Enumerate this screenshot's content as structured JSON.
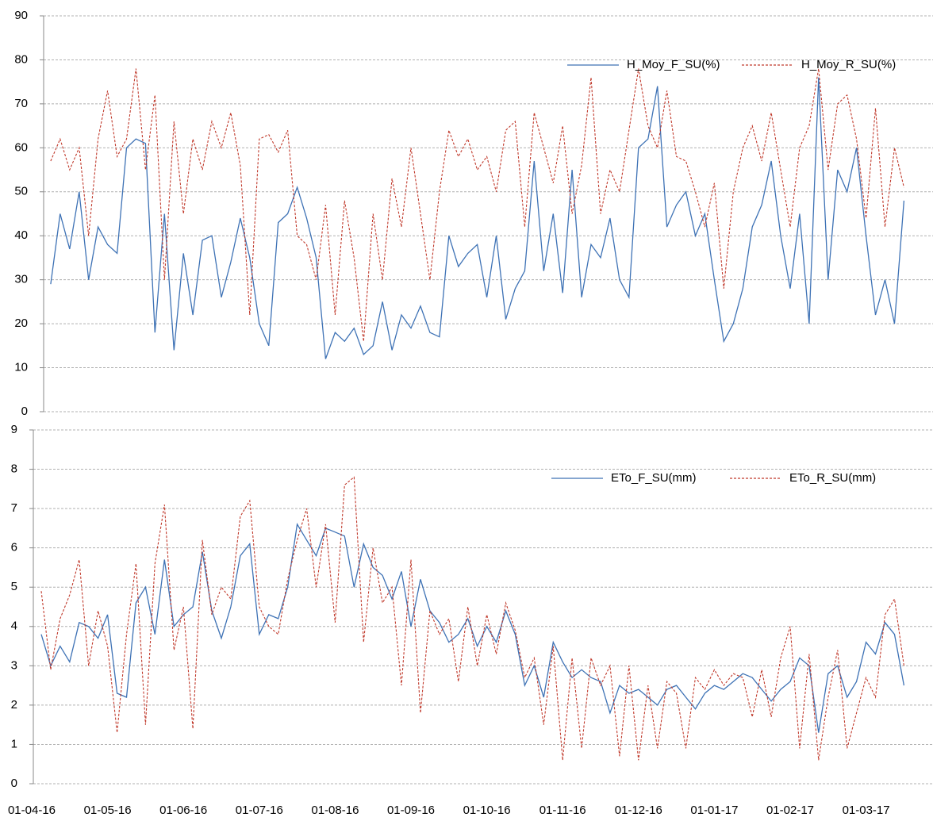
{
  "chart_data": [
    {
      "type": "line",
      "ylim": [
        0,
        90
      ],
      "yticks": [
        0,
        10,
        20,
        30,
        40,
        50,
        60,
        70,
        80,
        90
      ],
      "grid": true,
      "legend": "upper right",
      "series": [
        {
          "name": "H_Moy_F_SU(%)",
          "color": "#3e72b5",
          "dash": false,
          "values": [
            null,
            null,
            29,
            45,
            37,
            50,
            30,
            42,
            38,
            36,
            60,
            62,
            61,
            18,
            45,
            14,
            36,
            22,
            39,
            40,
            26,
            34,
            44,
            35,
            20,
            15,
            43,
            45,
            51,
            44,
            35,
            12,
            18,
            16,
            19,
            13,
            15,
            25,
            14,
            22,
            19,
            24,
            18,
            17,
            40,
            33,
            36,
            38,
            26,
            40,
            21,
            28,
            32,
            57,
            32,
            45,
            27,
            55,
            26,
            38,
            35,
            44,
            30,
            26,
            60,
            62,
            74,
            42,
            47,
            50,
            40,
            45,
            30,
            16,
            20,
            28,
            42,
            47,
            57,
            40,
            28,
            45,
            20,
            76,
            30,
            55,
            50,
            60,
            40,
            22,
            30,
            20,
            48,
            null,
            null,
            null
          ]
        },
        {
          "name": "H_Moy_R_SU(%)",
          "color": "#c0392b",
          "dash": true,
          "values": [
            null,
            null,
            57,
            62,
            55,
            60,
            40,
            62,
            73,
            58,
            62,
            78,
            55,
            72,
            30,
            66,
            45,
            62,
            55,
            66,
            60,
            68,
            56,
            22,
            62,
            63,
            59,
            64,
            40,
            38,
            30,
            47,
            22,
            48,
            35,
            16,
            45,
            30,
            53,
            42,
            60,
            45,
            30,
            50,
            64,
            58,
            62,
            55,
            58,
            50,
            64,
            66,
            42,
            68,
            60,
            52,
            65,
            45,
            56,
            76,
            45,
            55,
            50,
            64,
            78,
            65,
            60,
            73,
            58,
            57,
            50,
            42,
            52,
            28,
            50,
            60,
            65,
            57,
            68,
            55,
            42,
            60,
            65,
            78,
            55,
            70,
            72,
            62,
            44,
            69,
            42,
            60,
            51,
            null,
            null,
            null
          ]
        }
      ]
    },
    {
      "type": "line",
      "ylim": [
        0,
        9
      ],
      "yticks": [
        0,
        1,
        2,
        3,
        4,
        5,
        6,
        7,
        8,
        9
      ],
      "grid": true,
      "legend": "upper right",
      "categories": [
        "01-04-16",
        null,
        null,
        null,
        null,
        null,
        null,
        null,
        "01-05-16",
        null,
        null,
        null,
        null,
        null,
        null,
        null,
        "01-06-16",
        null,
        null,
        null,
        null,
        null,
        null,
        null,
        "01-07-16",
        null,
        null,
        null,
        null,
        null,
        null,
        null,
        "01-08-16",
        null,
        null,
        null,
        null,
        null,
        null,
        null,
        "01-09-16",
        null,
        null,
        null,
        null,
        null,
        null,
        null,
        "01-10-16",
        null,
        null,
        null,
        null,
        null,
        null,
        null,
        "01-11-16",
        null,
        null,
        null,
        null,
        null,
        null,
        null,
        "01-12-16",
        null,
        null,
        null,
        null,
        null,
        null,
        null,
        "01-01-17",
        null,
        null,
        null,
        null,
        null,
        null,
        null,
        "01-02-17",
        null,
        null,
        null,
        null,
        null,
        null,
        null,
        "01-03-17",
        null,
        null,
        null,
        null,
        null,
        null,
        null
      ],
      "series": [
        {
          "name": "ETo_F_SU(mm)",
          "color": "#3e72b5",
          "dash": false,
          "values": [
            null,
            3.8,
            3.0,
            3.5,
            3.1,
            4.1,
            4.0,
            3.7,
            4.3,
            2.3,
            2.2,
            4.6,
            5.0,
            3.8,
            5.7,
            4.0,
            4.3,
            4.5,
            5.9,
            4.4,
            3.7,
            4.5,
            5.8,
            6.1,
            3.8,
            4.3,
            4.2,
            5.0,
            6.6,
            6.2,
            5.8,
            6.5,
            6.4,
            6.3,
            5.0,
            6.1,
            5.5,
            5.3,
            4.7,
            5.4,
            4.0,
            5.2,
            4.4,
            4.1,
            3.6,
            3.8,
            4.2,
            3.5,
            4.0,
            3.6,
            4.4,
            3.8,
            2.5,
            3.0,
            2.2,
            3.6,
            3.1,
            2.7,
            2.9,
            2.7,
            2.6,
            1.8,
            2.5,
            2.3,
            2.4,
            2.2,
            2.0,
            2.4,
            2.5,
            2.2,
            1.9,
            2.3,
            2.5,
            2.4,
            2.6,
            2.8,
            2.7,
            2.4,
            2.1,
            2.4,
            2.6,
            3.2,
            3.0,
            1.3,
            2.8,
            3.0,
            2.2,
            2.6,
            3.6,
            3.3,
            4.1,
            3.8,
            2.5,
            null,
            null,
            null
          ]
        },
        {
          "name": "ETo_R_SU(mm)",
          "color": "#c0392b",
          "dash": true,
          "values": [
            null,
            4.9,
            2.9,
            4.2,
            4.8,
            5.7,
            3.0,
            4.4,
            3.5,
            1.3,
            3.8,
            5.6,
            1.5,
            5.6,
            7.1,
            3.4,
            4.5,
            1.4,
            6.2,
            4.3,
            5.0,
            4.7,
            6.8,
            7.2,
            4.5,
            4.0,
            3.8,
            5.2,
            6.2,
            7.0,
            5.0,
            6.6,
            4.1,
            7.6,
            7.8,
            3.6,
            6.0,
            4.6,
            5.0,
            2.5,
            5.7,
            1.8,
            4.4,
            3.8,
            4.2,
            2.6,
            4.5,
            3.0,
            4.3,
            3.3,
            4.6,
            3.9,
            2.7,
            3.2,
            1.5,
            3.5,
            0.6,
            3.2,
            0.9,
            3.2,
            2.5,
            3.0,
            0.7,
            3.0,
            0.6,
            2.5,
            0.9,
            2.6,
            2.3,
            0.9,
            2.7,
            2.4,
            2.9,
            2.5,
            2.8,
            2.7,
            1.7,
            2.9,
            1.7,
            3.2,
            4.0,
            0.9,
            3.3,
            0.6,
            2.2,
            3.4,
            0.9,
            1.8,
            2.7,
            2.2,
            4.3,
            4.7,
            3.0,
            null,
            null,
            null
          ]
        }
      ]
    }
  ]
}
